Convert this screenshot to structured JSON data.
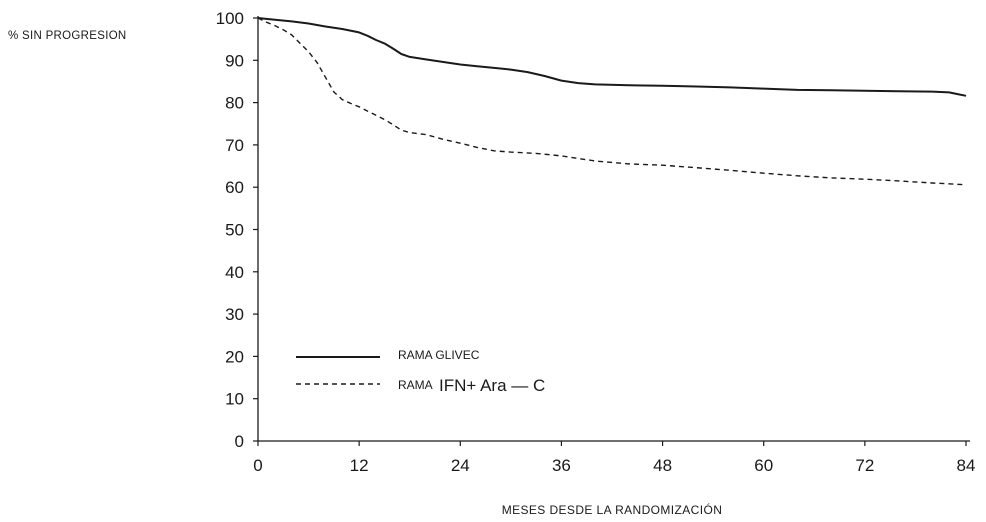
{
  "chart_data": {
    "type": "line",
    "title": "",
    "ylabel": "% SIN PROGRESION",
    "xlabel": "MESES DESDE LA RANDOMIZACIÓN",
    "xlim": [
      0,
      84
    ],
    "ylim": [
      0,
      100
    ],
    "xticks": [
      "0",
      "12",
      "24",
      "36",
      "48",
      "60",
      "72",
      "84"
    ],
    "yticks": [
      "0",
      "10",
      "20",
      "30",
      "40",
      "50",
      "60",
      "70",
      "80",
      "90",
      "100"
    ],
    "grid": false,
    "legend_position": "bottom-left",
    "series": [
      {
        "name": "RAMA GLIVEC",
        "line_style": "solid",
        "x": [
          0,
          2,
          4,
          6,
          8,
          10,
          12,
          13,
          14,
          15,
          16,
          17,
          18,
          20,
          22,
          24,
          26,
          28,
          30,
          32,
          34,
          36,
          38,
          40,
          44,
          48,
          52,
          56,
          60,
          64,
          68,
          72,
          76,
          80,
          82,
          83,
          84
        ],
        "y": [
          100,
          99.6,
          99.2,
          98.7,
          98,
          97.4,
          96.6,
          95.8,
          94.8,
          94,
          92.8,
          91.5,
          90.8,
          90.2,
          89.6,
          89,
          88.6,
          88.2,
          87.8,
          87.2,
          86.3,
          85.2,
          84.6,
          84.3,
          84.1,
          84,
          83.8,
          83.6,
          83.3,
          83,
          82.9,
          82.8,
          82.7,
          82.6,
          82.4,
          82,
          81.6
        ]
      },
      {
        "name": "RAMA IFN+ Ara — C",
        "legend_prefix": "RAMA",
        "legend_suffix": "IFN+ Ara — C",
        "line_style": "dashed",
        "x": [
          0,
          1,
          2,
          3,
          4,
          5,
          6,
          7,
          8,
          9,
          10,
          11,
          12,
          13,
          14,
          15,
          16,
          17,
          18,
          20,
          22,
          24,
          26,
          28,
          30,
          33,
          36,
          40,
          44,
          48,
          52,
          56,
          60,
          64,
          68,
          72,
          76,
          80,
          84
        ],
        "y": [
          100,
          99,
          98.2,
          97.2,
          96,
          94,
          92,
          89.5,
          86,
          82.5,
          80.7,
          79.8,
          79,
          78,
          77,
          76,
          74.8,
          73.5,
          72.9,
          72.4,
          71.3,
          70.4,
          69.4,
          68.6,
          68.3,
          68,
          67.4,
          66.2,
          65.5,
          65.2,
          64.6,
          64,
          63.3,
          62.7,
          62.2,
          61.9,
          61.5,
          61,
          60.6
        ]
      }
    ]
  }
}
